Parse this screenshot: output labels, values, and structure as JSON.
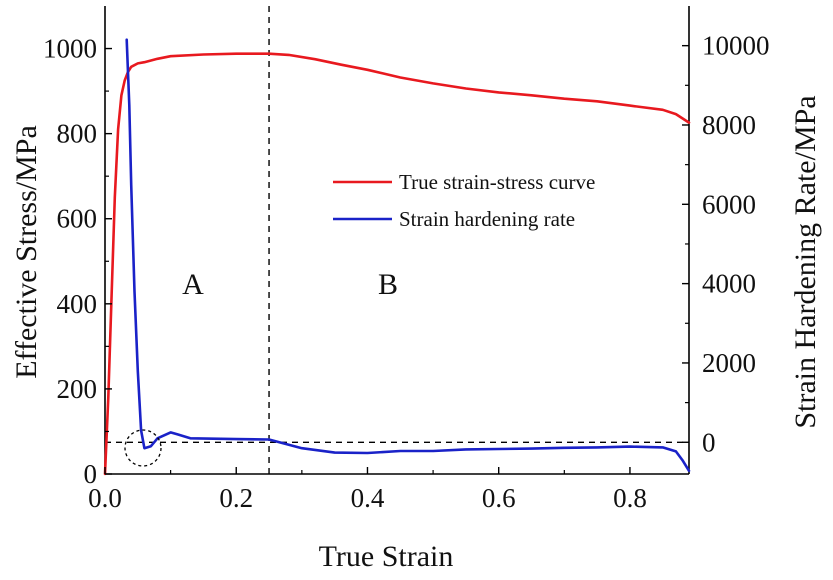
{
  "chart_data": {
    "type": "line",
    "title": "",
    "xlabel": "True Strain",
    "ylabel_left": "Effective Stress/MPa",
    "ylabel_right": "Strain Hardening Rate/MPa",
    "xlim": [
      0,
      0.89
    ],
    "ylim_left": [
      0,
      1100
    ],
    "ylim_right": [
      -800,
      11000
    ],
    "x_ticks": [
      0.0,
      0.2,
      0.4,
      0.6,
      0.8
    ],
    "x_tick_labels": [
      "0.0",
      "0.2",
      "0.4",
      "0.6",
      "0.8"
    ],
    "y_left_ticks": [
      0,
      200,
      400,
      600,
      800,
      1000
    ],
    "y_left_tick_labels": [
      "0",
      "200",
      "400",
      "600",
      "800",
      "1000"
    ],
    "y_right_ticks": [
      0,
      2000,
      4000,
      6000,
      8000,
      10000
    ],
    "y_right_tick_labels": [
      "0",
      "2000",
      "4000",
      "6000",
      "8000",
      "10000"
    ],
    "grid": false,
    "legend_position": "center-right",
    "series": [
      {
        "name": "True strain-stress curve",
        "axis": "left",
        "color": "#e8191f",
        "x": [
          0.0,
          0.005,
          0.01,
          0.015,
          0.02,
          0.025,
          0.03,
          0.035,
          0.04,
          0.05,
          0.06,
          0.08,
          0.1,
          0.15,
          0.2,
          0.25,
          0.28,
          0.32,
          0.36,
          0.4,
          0.45,
          0.5,
          0.55,
          0.6,
          0.65,
          0.7,
          0.75,
          0.8,
          0.85,
          0.87,
          0.89
        ],
        "y": [
          0,
          180,
          420,
          650,
          810,
          890,
          925,
          945,
          957,
          965,
          968,
          976,
          982,
          986,
          988,
          988,
          985,
          975,
          962,
          950,
          932,
          918,
          906,
          897,
          890,
          882,
          876,
          866,
          856,
          846,
          826
        ]
      },
      {
        "name": "Strain hardening rate",
        "axis": "right",
        "color": "#1a22c8",
        "x": [
          0.0,
          0.01,
          0.02,
          0.025,
          0.03,
          0.033,
          0.037,
          0.04,
          0.045,
          0.05,
          0.055,
          0.06,
          0.07,
          0.08,
          0.1,
          0.11,
          0.13,
          0.2,
          0.25,
          0.3,
          0.35,
          0.4,
          0.45,
          0.5,
          0.55,
          0.6,
          0.65,
          0.7,
          0.75,
          0.8,
          0.85,
          0.87,
          0.88,
          0.89
        ],
        "y": [
          null,
          null,
          null,
          null,
          null,
          10150,
          8500,
          6500,
          3800,
          1800,
          300,
          -150,
          -100,
          100,
          250,
          200,
          100,
          80,
          70,
          -150,
          -260,
          -270,
          -220,
          -220,
          -180,
          -170,
          -160,
          -140,
          -130,
          -110,
          -130,
          -230,
          -450,
          -720
        ]
      }
    ],
    "annotations": {
      "region_labels": [
        "A",
        "B"
      ],
      "vertical_divider_x": 0.25,
      "horizontal_reference_right_y": 0
    }
  }
}
